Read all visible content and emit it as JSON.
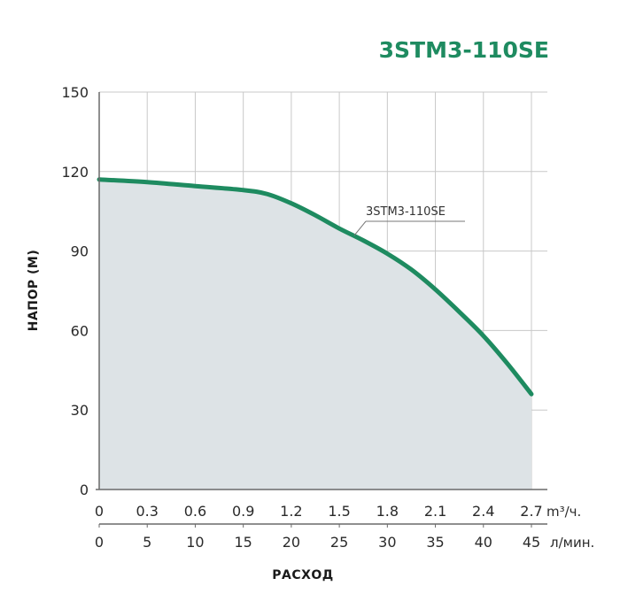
{
  "chart_data": {
    "type": "area",
    "title": "3STM3-110SE",
    "ylabel": "НАПОР (М)",
    "xlabel": "РАСХОД",
    "ylim": [
      0,
      150
    ],
    "y_ticks": [
      0,
      30,
      60,
      90,
      120,
      150
    ],
    "xlim": [
      0,
      2.7
    ],
    "x_ticks": [
      "0",
      "0.3",
      "0.6",
      "0.9",
      "1.2",
      "1.5",
      "1.8",
      "2.1",
      "2.4",
      "2.7"
    ],
    "x_unit": "m³/ч.",
    "x2_ticks": [
      "0",
      "5",
      "10",
      "15",
      "20",
      "25",
      "30",
      "35",
      "40",
      "45"
    ],
    "x2_unit": "л/мин.",
    "grid": true,
    "colors": {
      "line": "#1e8b60",
      "fill": "#dde3e6",
      "grid": "#c8c8c8",
      "title": "#1e8b60"
    },
    "series": [
      {
        "name": "3STM3-110SE",
        "x": [
          0,
          0.3,
          0.6,
          0.9,
          1.05,
          1.2,
          1.35,
          1.5,
          1.65,
          1.8,
          1.95,
          2.1,
          2.25,
          2.4,
          2.55,
          2.7
        ],
        "y": [
          117,
          116,
          114.5,
          113,
          111.5,
          108,
          103.5,
          98.5,
          94,
          89,
          83,
          75.5,
          67,
          58,
          47.5,
          36
        ]
      }
    ]
  }
}
